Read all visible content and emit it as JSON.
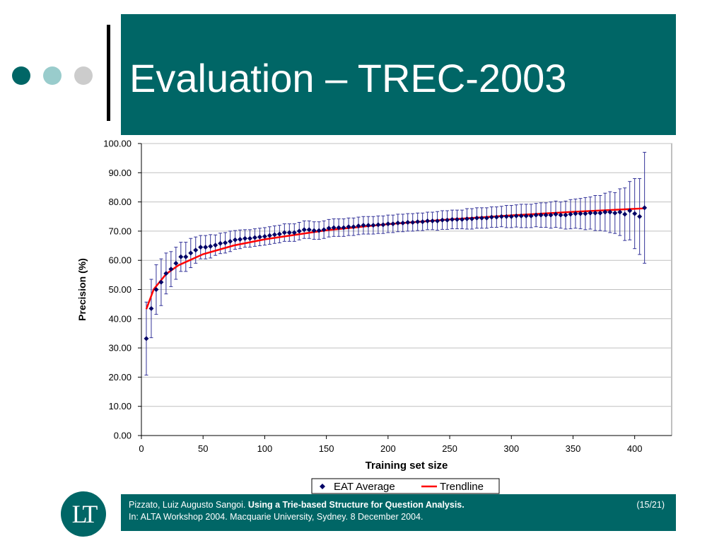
{
  "slide": {
    "title": "Evaluation – TREC-2003",
    "decor_colors": [
      "#006666",
      "#99cccc",
      "#cccccc"
    ],
    "logo_text": "LT"
  },
  "footer": {
    "author": "Pizzato, Luiz Augusto Sangoi.",
    "paper_title": "Using a Trie-based Structure for Question Analysis.",
    "venue": "In: ALTA Workshop 2004. Macquarie University, Sydney. 8 December 2004.",
    "page": "(15/21)"
  },
  "chart_data": {
    "type": "scatter",
    "xlabel": "Training set size",
    "ylabel": "Precision (%)",
    "xlim": [
      0,
      430
    ],
    "ylim": [
      0,
      100
    ],
    "xticks": [
      0,
      50,
      100,
      150,
      200,
      250,
      300,
      350,
      400
    ],
    "yticks": [
      "0.00",
      "10.00",
      "20.00",
      "30.00",
      "40.00",
      "50.00",
      "60.00",
      "70.00",
      "80.00",
      "90.00",
      "100.00"
    ],
    "grid": true,
    "legend_position": "bottom",
    "legend": [
      "EAT Average",
      "Trendline"
    ],
    "colors": {
      "points": "#000066",
      "trendline": "#ff0000",
      "errorbars": "#333399",
      "grid": "#c0c0c0"
    },
    "series": [
      {
        "name": "EAT Average",
        "x": [
          4,
          8,
          12,
          16,
          20,
          24,
          28,
          32,
          36,
          40,
          44,
          48,
          52,
          56,
          60,
          64,
          68,
          72,
          76,
          80,
          84,
          88,
          92,
          96,
          100,
          104,
          108,
          112,
          116,
          120,
          124,
          128,
          132,
          136,
          140,
          144,
          148,
          152,
          156,
          160,
          164,
          168,
          172,
          176,
          180,
          184,
          188,
          192,
          196,
          200,
          204,
          208,
          212,
          216,
          220,
          224,
          228,
          232,
          236,
          240,
          244,
          248,
          252,
          256,
          260,
          264,
          268,
          272,
          276,
          280,
          284,
          288,
          292,
          296,
          300,
          304,
          308,
          312,
          316,
          320,
          324,
          328,
          332,
          336,
          340,
          344,
          348,
          352,
          356,
          360,
          364,
          368,
          372,
          376,
          380,
          384,
          388,
          392,
          396,
          400,
          404,
          408
        ],
        "y": [
          33.2,
          43.5,
          50,
          52.5,
          55.5,
          57,
          59,
          61.2,
          61.2,
          62.5,
          63.5,
          64.5,
          64.5,
          64.8,
          65.2,
          65.8,
          66,
          66.5,
          67,
          67.2,
          67.5,
          67.5,
          67.8,
          68,
          68.2,
          68.5,
          68.8,
          69,
          69.5,
          69.5,
          69.5,
          70,
          70.5,
          70.5,
          70.2,
          70.2,
          70.5,
          71,
          71.2,
          71.2,
          71.2,
          71.5,
          71.5,
          71.8,
          72,
          72,
          72,
          72.2,
          72.2,
          72.5,
          72.5,
          72.8,
          72.8,
          73,
          73,
          73.2,
          73.2,
          73.5,
          73.5,
          73.5,
          73.8,
          73.8,
          74,
          74,
          74,
          74.2,
          74.2,
          74.5,
          74.5,
          74.5,
          74.8,
          74.8,
          75,
          75,
          75,
          75.2,
          75.2,
          75.2,
          75.2,
          75.5,
          75.5,
          75.5,
          75.5,
          75.8,
          75.5,
          75.5,
          75.8,
          76,
          76,
          76,
          76.2,
          76.2,
          76.2,
          76.5,
          76.5,
          76.2,
          76.5,
          75.8,
          77,
          76,
          75,
          78
        ],
        "err": [
          12.5,
          10,
          8.5,
          8,
          7,
          6,
          5.5,
          5,
          5,
          5,
          4.5,
          4,
          4,
          4,
          3.5,
          3.5,
          3.5,
          3.5,
          3.2,
          3.2,
          3,
          3,
          3,
          3,
          3,
          3,
          3,
          3,
          3,
          3,
          3,
          3,
          3,
          3,
          3,
          3,
          3,
          3,
          3,
          3,
          3,
          3,
          3,
          3,
          3,
          3,
          3,
          3,
          3,
          3,
          3,
          3,
          3,
          3,
          3,
          3,
          3,
          3,
          3,
          3.2,
          3.2,
          3.2,
          3.2,
          3.2,
          3.2,
          3.5,
          3.5,
          3.5,
          3.5,
          3.5,
          3.5,
          3.5,
          3.5,
          3.8,
          3.8,
          3.8,
          4,
          4,
          4,
          4,
          4.2,
          4.2,
          4.5,
          4.5,
          4.5,
          4.8,
          5,
          5,
          5.2,
          5.5,
          5.5,
          6,
          6,
          6.5,
          7,
          7,
          8,
          9,
          10,
          12,
          13,
          19
        ]
      },
      {
        "name": "Trendline",
        "model": "logarithmic",
        "x": [
          4,
          10,
          20,
          30,
          50,
          75,
          100,
          150,
          200,
          250,
          300,
          350,
          408
        ],
        "y": [
          43.3,
          50.1,
          55.3,
          58.3,
          62.1,
          65.1,
          67.2,
          70.3,
          72.4,
          74.0,
          75.4,
          76.6,
          77.8
        ]
      }
    ]
  }
}
